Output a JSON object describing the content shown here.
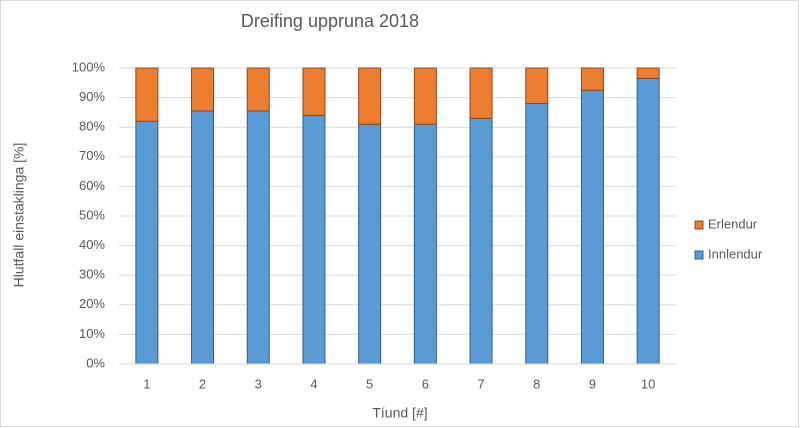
{
  "chart_data": {
    "type": "stacked_bar",
    "title": "Dreifing uppruna 2018",
    "x_label": "Tíund [#]",
    "y_label": "Hlutfall einstaklinga [%]",
    "categories": [
      "1",
      "2",
      "3",
      "4",
      "5",
      "6",
      "7",
      "8",
      "9",
      "10"
    ],
    "series": [
      {
        "name": "Innlendur",
        "color": "#5b9bd5",
        "values": [
          82,
          85.5,
          85.5,
          84,
          81,
          81,
          83,
          88,
          92.5,
          96.5
        ]
      },
      {
        "name": "Erlendur",
        "color": "#ed7d31",
        "values": [
          18,
          14.5,
          14.5,
          16,
          19,
          19,
          17,
          12,
          7.5,
          3.5
        ]
      }
    ],
    "ylim": [
      0,
      100
    ],
    "yticks": [
      {
        "value": 0,
        "label": "0%"
      },
      {
        "value": 10,
        "label": "10%"
      },
      {
        "value": 20,
        "label": "20%"
      },
      {
        "value": 30,
        "label": "30%"
      },
      {
        "value": 40,
        "label": "40%"
      },
      {
        "value": 50,
        "label": "50%"
      },
      {
        "value": 60,
        "label": "60%"
      },
      {
        "value": 70,
        "label": "70%"
      },
      {
        "value": 80,
        "label": "80%"
      },
      {
        "value": 90,
        "label": "90%"
      },
      {
        "value": 100,
        "label": "100%"
      }
    ],
    "grid": true,
    "legend": "right"
  }
}
